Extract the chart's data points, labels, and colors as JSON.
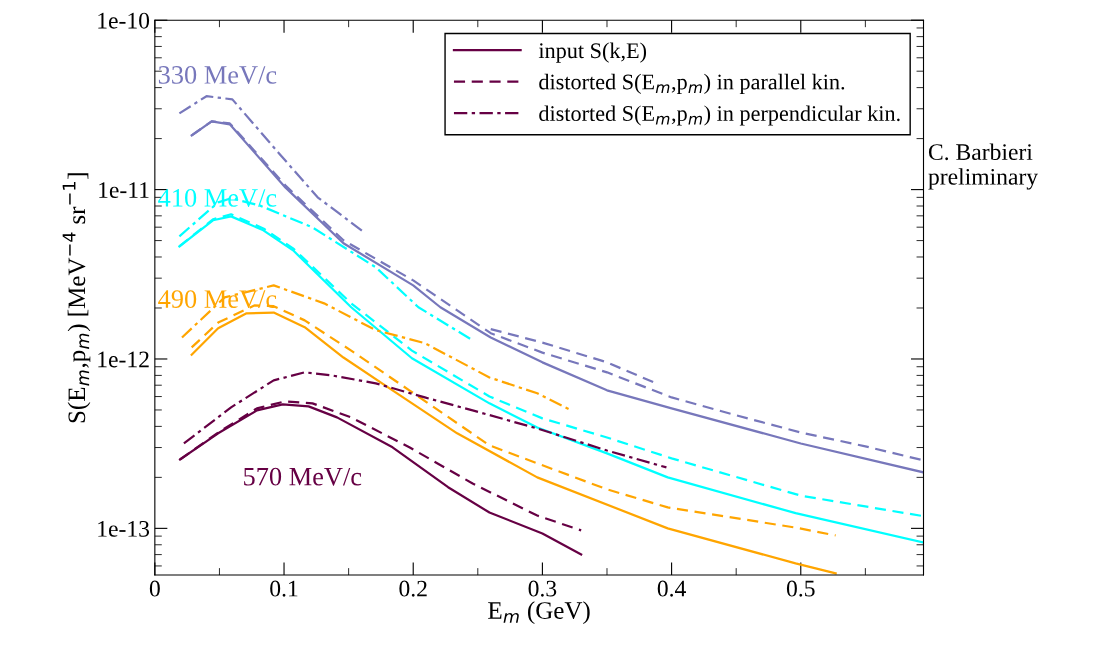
{
  "chart_data": {
    "type": "line",
    "xlabel": "E$_{m}$ (GeV)",
    "ylabel": "S(E$_{m}$,p$_{m}$) [MeV$^{−4}$ sr$^{−1}$]",
    "xlim": [
      0,
      0.595
    ],
    "xticks": [
      0,
      0.1,
      0.2,
      0.3,
      0.4,
      0.5
    ],
    "ylim": [
      5.3e-14,
      1e-10
    ],
    "log": "y",
    "yticks": [
      {
        "value": 1e-13,
        "label": "1e-13"
      },
      {
        "value": 1e-12,
        "label": "1e-12"
      },
      {
        "value": 1e-11,
        "label": "1e-11"
      },
      {
        "value": 1e-10,
        "label": "1e-10"
      }
    ],
    "grid": false,
    "legend": "top right",
    "marker": "none",
    "annotations": [
      "330 MeV/c",
      "410 MeV/c",
      "490 MeV/c",
      "570 MeV/c",
      "C. Barbieri\npreliminary"
    ],
    "series": [
      {
        "color": "#7777bb",
        "line_style": "solid",
        "x": [
          0.0285,
          0.044,
          0.058,
          0.101,
          0.146,
          0.2,
          0.221,
          0.26,
          0.3,
          0.35,
          0.4,
          0.5,
          0.595
        ],
        "values": [
          2.09e-11,
          2.53e-11,
          2.43e-11,
          1.03e-11,
          4.82e-12,
          2.72e-12,
          2.02e-12,
          1.34e-12,
          9.55e-13,
          6.53e-13,
          5.11e-13,
          3.17e-13,
          2.14e-13
        ]
      },
      {
        "color": "#7777bb",
        "line_style": "dashed",
        "x": [
          0.0285,
          0.044,
          0.058,
          0.101,
          0.146,
          0.2,
          0.26,
          0.3,
          0.35,
          0.4,
          0.45,
          0.5,
          0.55,
          0.595
        ],
        "values": [
          2.09e-11,
          2.53e-11,
          2.46e-11,
          1.06e-11,
          5.02e-12,
          2.91e-12,
          1.42e-12,
          1.09e-12,
          8.34e-13,
          5.93e-13,
          4.65e-13,
          3.68e-13,
          3.05e-13,
          2.52e-13
        ]
      },
      {
        "color": "#7777bb",
        "line_style": "dashed",
        "x": [
          0.26,
          0.3,
          0.35,
          0.388
        ],
        "values": [
          1.5e-12,
          1.25e-12,
          9.55e-13,
          7.18e-13
        ]
      },
      {
        "color": "#7777bb",
        "line_style": "dashdot",
        "x": [
          0.019,
          0.04,
          0.06,
          0.096,
          0.126,
          0.163
        ],
        "values": [
          2.82e-11,
          3.56e-11,
          3.41e-11,
          1.64e-11,
          9.01e-12,
          5.52e-12
        ]
      },
      {
        "color": "#00ffff",
        "line_style": "solid",
        "x": [
          0.019,
          0.045,
          0.059,
          0.084,
          0.107,
          0.152,
          0.199,
          0.259,
          0.296,
          0.35,
          0.397,
          0.496,
          0.595
        ],
        "values": [
          4.62e-12,
          6.59e-12,
          6.95e-12,
          5.75e-12,
          4.38e-12,
          2.02e-12,
          1.01e-12,
          5.47e-13,
          3.94e-13,
          2.77e-13,
          2e-13,
          1.23e-13,
          8.26e-14
        ]
      },
      {
        "color": "#00ffff",
        "line_style": "dashed",
        "x": [
          0.019,
          0.045,
          0.059,
          0.084,
          0.107,
          0.152,
          0.199,
          0.259,
          0.3,
          0.35,
          0.4,
          0.5,
          0.595
        ],
        "values": [
          4.62e-12,
          6.68e-12,
          7.15e-12,
          5.9e-12,
          4.5e-12,
          2.13e-12,
          1.12e-12,
          6.01e-13,
          4.46e-13,
          3.44e-13,
          2.59e-13,
          1.56e-13,
          1.18e-13
        ]
      },
      {
        "color": "#00ffff",
        "line_style": "dashdot",
        "x": [
          0.019,
          0.049,
          0.059,
          0.081,
          0.122,
          0.171,
          0.204,
          0.246
        ],
        "values": [
          5.3e-12,
          8.41e-12,
          8.89e-12,
          8.07e-12,
          5.98e-12,
          3.48e-12,
          2.02e-12,
          1.29e-12
        ]
      },
      {
        "color": "#ffa500",
        "line_style": "solid",
        "x": [
          0.0285,
          0.049,
          0.071,
          0.092,
          0.116,
          0.146,
          0.184,
          0.234,
          0.296,
          0.397,
          0.496,
          0.527
        ],
        "values": [
          1.06e-12,
          1.52e-12,
          1.86e-12,
          1.88e-12,
          1.54e-12,
          1.02e-12,
          6.53e-13,
          3.64e-13,
          2e-13,
          1e-13,
          6.21e-14,
          5.42e-14
        ]
      },
      {
        "color": "#ffa500",
        "line_style": "dashed",
        "x": [
          0.0285,
          0.049,
          0.077,
          0.092,
          0.116,
          0.152,
          0.197,
          0.259,
          0.296,
          0.35,
          0.397,
          0.496,
          0.527
        ],
        "values": [
          1.17e-12,
          1.64e-12,
          2.07e-12,
          2.05e-12,
          1.69e-12,
          1.12e-12,
          6.53e-13,
          3.09e-13,
          2.42e-13,
          1.7e-13,
          1.33e-13,
          1.01e-13,
          9.08e-14
        ]
      },
      {
        "color": "#ffa500",
        "line_style": "dashdot",
        "x": [
          0.021,
          0.054,
          0.092,
          0.131,
          0.171,
          0.209,
          0.259,
          0.296,
          0.321
        ],
        "values": [
          1.34e-12,
          2.31e-12,
          2.72e-12,
          2.13e-12,
          1.48e-12,
          1.24e-12,
          7.78e-13,
          6.27e-13,
          5.04e-13
        ]
      },
      {
        "name": "input S(k,E)",
        "color": "#660044",
        "line_style": "solid",
        "x": [
          0.0195,
          0.049,
          0.079,
          0.099,
          0.119,
          0.141,
          0.184,
          0.227,
          0.259,
          0.3,
          0.33
        ],
        "values": [
          2.55e-13,
          3.64e-13,
          4.97e-13,
          5.4e-13,
          5.25e-13,
          4.52e-13,
          3.01e-13,
          1.75e-13,
          1.24e-13,
          9.33e-14,
          7.02e-14
        ]
      },
      {
        "name": "distorted S(E$_{m}$,p$_{m}$) in parallel kin.",
        "color": "#660044",
        "line_style": "dashed",
        "x": [
          0.0195,
          0.049,
          0.079,
          0.101,
          0.122,
          0.152,
          0.197,
          0.246,
          0.296,
          0.33
        ],
        "values": [
          2.55e-13,
          3.68e-13,
          5.11e-13,
          5.62e-13,
          5.47e-13,
          4.52e-13,
          3.01e-13,
          1.84e-13,
          1.19e-13,
          9.73e-14
        ]
      },
      {
        "name": "distorted S(E$_{m}$,p$_{m}$) in perpendicular kin.",
        "color": "#660044",
        "line_style": "dashdot",
        "x": [
          0.0225,
          0.059,
          0.092,
          0.116,
          0.137,
          0.171,
          0.209,
          0.246,
          0.296,
          0.35,
          0.396
        ],
        "values": [
          3.17e-13,
          5.18e-13,
          7.48e-13,
          8.34e-13,
          8e-13,
          7.18e-13,
          5.93e-13,
          4.97e-13,
          3.89e-13,
          2.88e-13,
          2.29e-13
        ]
      }
    ]
  }
}
